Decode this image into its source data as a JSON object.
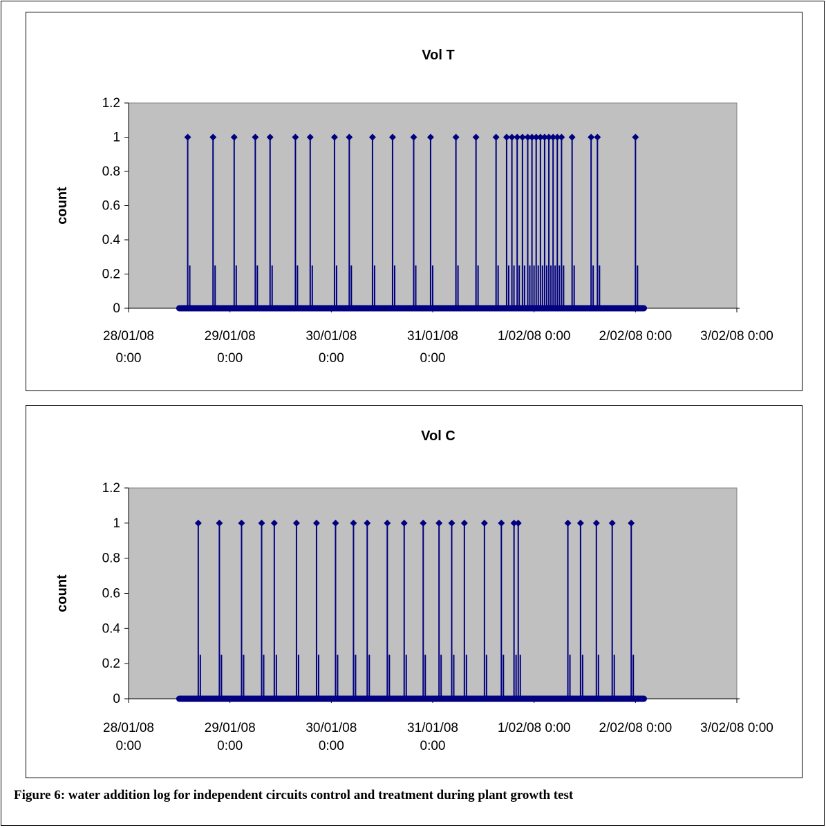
{
  "caption": "Figure 6: water addition log for independent circuits control and treatment during plant growth test",
  "colors": {
    "plot_bg": "#c0c0c0",
    "series": "#000080",
    "axis": "#000000"
  },
  "chart_data": [
    {
      "type": "scatter",
      "title": "Vol T",
      "xlabel": "",
      "ylabel": "count",
      "ylim": [
        0,
        1.2
      ],
      "yticks": [
        0,
        0.2,
        0.4,
        0.6,
        0.8,
        1,
        1.2
      ],
      "ytick_labels": [
        "0",
        "0.2",
        "0.4",
        "0.6",
        "0.8",
        "1",
        "1.2"
      ],
      "xlim": [
        "28/01/08 0:00",
        "3/02/08 0:00"
      ],
      "xtick_labels": [
        [
          "28/01/08",
          "0:00"
        ],
        [
          "29/01/08",
          "0:00"
        ],
        [
          "30/01/08",
          "0:00"
        ],
        [
          "31/01/08",
          "0:00"
        ],
        [
          "1/02/08 0:00"
        ],
        [
          "2/02/08 0:00"
        ],
        [
          "3/02/08 0:00"
        ]
      ],
      "grid": false,
      "legend": "none",
      "baseline_range": [
        "28/01/08 12:00",
        "2/02/08 2:00"
      ],
      "events": [
        "28/01/08 14:00",
        "28/01/08 20:00",
        "29/01/08 1:00",
        "29/01/08 6:00",
        "29/01/08 9:30",
        "29/01/08 15:30",
        "29/01/08 19:00",
        "30/01/08 0:45",
        "30/01/08 4:15",
        "30/01/08 9:45",
        "30/01/08 14:30",
        "30/01/08 19:30",
        "30/01/08 23:30",
        "31/01/08 5:30",
        "31/01/08 10:15",
        "31/01/08 15:00",
        "31/01/08 17:30",
        "31/01/08 18:45",
        "31/01/08 20:00",
        "31/01/08 21:15",
        "31/01/08 22:30",
        "31/01/08 23:30",
        "1/02/08 0:30",
        "1/02/08 1:30",
        "1/02/08 2:30",
        "1/02/08 3:30",
        "1/02/08 4:30",
        "1/02/08 5:30",
        "1/02/08 6:30",
        "1/02/08 9:00",
        "1/02/08 13:30",
        "1/02/08 15:00",
        "2/02/08 0:00"
      ],
      "event_value": 1
    },
    {
      "type": "scatter",
      "title": "Vol C",
      "xlabel": "",
      "ylabel": "count",
      "ylim": [
        0,
        1.2
      ],
      "yticks": [
        0,
        0.2,
        0.4,
        0.6,
        0.8,
        1,
        1.2
      ],
      "ytick_labels": [
        "0",
        "0.2",
        "0.4",
        "0.6",
        "0.8",
        "1",
        "1.2"
      ],
      "xlim": [
        "28/01/08 0:00",
        "3/02/08 0:00"
      ],
      "xtick_labels": [
        [
          "28/01/08",
          "0:00"
        ],
        [
          "29/01/08",
          "0:00"
        ],
        [
          "30/01/08",
          "0:00"
        ],
        [
          "31/01/08",
          "0:00"
        ],
        [
          "1/02/08 0:00"
        ],
        [
          "2/02/08 0:00"
        ],
        [
          "3/02/08 0:00"
        ]
      ],
      "grid": false,
      "legend": "none",
      "baseline_range": [
        "28/01/08 12:00",
        "2/02/08 2:00"
      ],
      "events": [
        "28/01/08 16:30",
        "28/01/08 21:30",
        "29/01/08 2:45",
        "29/01/08 7:30",
        "29/01/08 10:30",
        "29/01/08 15:45",
        "29/01/08 20:30",
        "30/01/08 1:00",
        "30/01/08 5:15",
        "30/01/08 8:30",
        "30/01/08 13:15",
        "30/01/08 17:15",
        "30/01/08 21:45",
        "31/01/08 1:30",
        "31/01/08 4:30",
        "31/01/08 7:30",
        "31/01/08 12:15",
        "31/01/08 16:15",
        "31/01/08 19:15",
        "31/01/08 20:15",
        "1/02/08 8:00",
        "1/02/08 11:00",
        "1/02/08 14:45",
        "1/02/08 18:30",
        "1/02/08 23:00"
      ],
      "event_value": 1
    }
  ]
}
